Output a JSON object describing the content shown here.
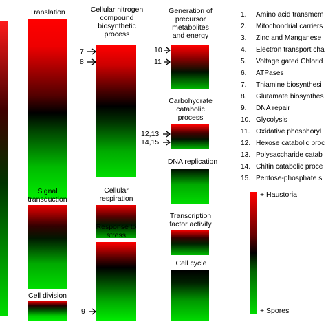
{
  "colors": {
    "up": "#ff0000",
    "mid": "#000000",
    "down": "#00cc00"
  },
  "panels": {
    "translation": {
      "title": "Translation"
    },
    "signal": {
      "title": "Signal\ntransduction"
    },
    "cell_division": {
      "title": "Cell division"
    },
    "nitrogen": {
      "title": "Cellular nitrogen\ncompound\nbiosynthetic\nprocess",
      "marks": [
        "7",
        "8"
      ]
    },
    "respiration": {
      "title": "Cellular\nrespiration"
    },
    "stress": {
      "title": "Response to\nstress",
      "marks": [
        "9"
      ]
    },
    "precursor": {
      "title": "Generation of\nprecursor\nmetabolites\nand energy",
      "marks": [
        "10",
        "11"
      ]
    },
    "carbohydrate": {
      "title": "Carbohydrate\ncatabolic\nprocess",
      "marks": [
        "12,13",
        "14,15"
      ]
    },
    "dna": {
      "title": "DNA replication"
    },
    "tf": {
      "title": "Transcription\nfactor activity"
    },
    "cellcycle": {
      "title": "Cell cycle"
    }
  },
  "key": [
    {
      "num": "1.",
      "text": "Amino acid transmem"
    },
    {
      "num": "2.",
      "text": "Mitochondrial carriers"
    },
    {
      "num": "3.",
      "text": "Zinc and Manganese"
    },
    {
      "num": "4.",
      "text": "Electron transport cha"
    },
    {
      "num": "5.",
      "text": "Voltage gated Chlorid"
    },
    {
      "num": "6.",
      "text": "ATPases"
    },
    {
      "num": "7.",
      "text": "Thiamine biosynthesi"
    },
    {
      "num": "8.",
      "text": "Glutamate biosynthes"
    },
    {
      "num": "9.",
      "text": "DNA repair"
    },
    {
      "num": "10.",
      "text": "Glycolysis"
    },
    {
      "num": "11.",
      "text": "Oxidative phosphoryl"
    },
    {
      "num": "12.",
      "text": "Hexose catabolic proc"
    },
    {
      "num": "13.",
      "text": "Polysaccharide catab"
    },
    {
      "num": "14.",
      "text": "Chitin catabolic proce"
    },
    {
      "num": "15.",
      "text": "Pentose-phosphate s"
    }
  ],
  "scale": {
    "top": "+ Haustoria",
    "bottom": "+ Spores"
  }
}
